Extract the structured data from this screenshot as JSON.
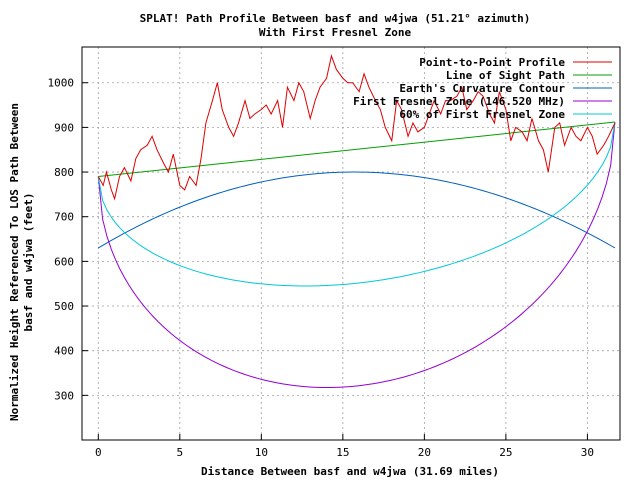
{
  "chart_data": {
    "type": "line",
    "title": "SPLAT! Path Profile Between basf and w4jwa (51.21° azimuth)",
    "subtitle": "With First Fresnel Zone",
    "xlabel": "Distance Between basf and w4jwa (31.69 miles)",
    "ylabel_line1": "Normalized Height Referenced To LOS Path Between",
    "ylabel_line2": "basf and w4jwa (feet)",
    "xlim": [
      -1,
      32
    ],
    "ylim": [
      200,
      1080
    ],
    "x_ticks": [
      0,
      5,
      10,
      15,
      20,
      25,
      30
    ],
    "y_ticks": [
      300,
      400,
      500,
      600,
      700,
      800,
      900,
      1000
    ],
    "grid": true,
    "legend_position": "top-right",
    "series": [
      {
        "name": "Point-to-Point Profile",
        "color": "#dd0000",
        "x": [
          0,
          0.3,
          0.5,
          0.8,
          1.0,
          1.3,
          1.6,
          2.0,
          2.3,
          2.6,
          3.0,
          3.3,
          3.6,
          4.0,
          4.3,
          4.6,
          5.0,
          5.3,
          5.6,
          6.0,
          6.3,
          6.6,
          7.0,
          7.3,
          7.6,
          8.0,
          8.3,
          8.6,
          9.0,
          9.3,
          9.6,
          10.0,
          10.3,
          10.6,
          11.0,
          11.3,
          11.6,
          12.0,
          12.3,
          12.6,
          13.0,
          13.3,
          13.6,
          14.0,
          14.3,
          14.6,
          15.0,
          15.3,
          15.6,
          16.0,
          16.3,
          16.6,
          17.0,
          17.3,
          17.6,
          18.0,
          18.3,
          18.6,
          19.0,
          19.3,
          19.6,
          20.0,
          20.3,
          20.6,
          21.0,
          21.3,
          21.6,
          22.0,
          22.3,
          22.6,
          23.0,
          23.3,
          23.6,
          24.0,
          24.3,
          24.6,
          25.0,
          25.3,
          25.6,
          26.0,
          26.3,
          26.6,
          27.0,
          27.3,
          27.6,
          28.0,
          28.3,
          28.6,
          29.0,
          29.3,
          29.6,
          30.0,
          30.3,
          30.6,
          31.0,
          31.3,
          31.69
        ],
        "y": [
          790,
          770,
          800,
          760,
          740,
          790,
          810,
          780,
          830,
          850,
          860,
          880,
          850,
          820,
          800,
          840,
          770,
          760,
          790,
          770,
          830,
          910,
          960,
          1000,
          940,
          900,
          880,
          910,
          960,
          920,
          930,
          940,
          950,
          930,
          960,
          900,
          990,
          960,
          1000,
          980,
          920,
          960,
          990,
          1010,
          1060,
          1030,
          1010,
          1000,
          1000,
          980,
          1020,
          990,
          960,
          940,
          900,
          870,
          960,
          940,
          880,
          910,
          890,
          900,
          930,
          960,
          930,
          960,
          960,
          970,
          990,
          940,
          960,
          980,
          970,
          930,
          910,
          980,
          940,
          870,
          900,
          890,
          870,
          920,
          870,
          850,
          800,
          900,
          910,
          860,
          900,
          880,
          870,
          900,
          880,
          840,
          860,
          880,
          910
        ]
      },
      {
        "name": "Line of Sight Path",
        "color": "#00a000",
        "x": [
          0,
          31.69
        ],
        "y": [
          790,
          912
        ]
      },
      {
        "name": "Earth's Curvature Contour",
        "color": "#0060c0",
        "function": "earth_curvature"
      },
      {
        "name": "First Fresnel Zone (146.520 MHz)",
        "color": "#9400d3",
        "function": "fresnel_full"
      },
      {
        "name": "60% of First Fresnel Zone",
        "color": "#00c8d8",
        "function": "fresnel_60"
      }
    ]
  }
}
